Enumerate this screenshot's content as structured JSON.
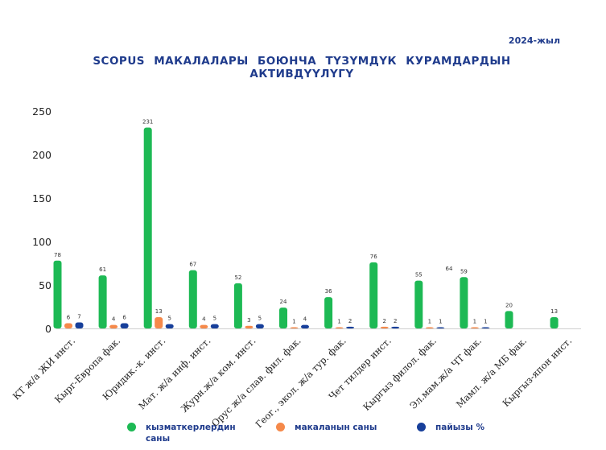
{
  "chart_data": {
    "type": "bar",
    "title": "SCOPUS МАКАЛАЛАРЫ БОЮНЧА ТҮЗҮМДҮК КУРАМДАРДЫН АКТИВДҮҮЛҮГҮ",
    "subtitle": "2024-жыл",
    "categories": [
      "КТ ж/а ЖИ инст.",
      "Кырг-Европа фак.",
      "Юридик.-к. инст.",
      "Мат. ж/а инф. инст.",
      "Журн.ж/а ком. инст.",
      "Орус ж/а слав. фил. фак.",
      "Геог., экол. ж/а тур. фак.",
      "Чет тилдер инст.",
      "Кыргыз филол. фак.",
      "Эл.мам.ж/а ЧТ фак.",
      "Мамл. ж/а МБ фак.",
      "Кыргыз-япон инст."
    ],
    "series": [
      {
        "name": "кызматкерлердин саны",
        "color": "#1db954",
        "values": [
          78,
          61,
          231,
          67,
          52,
          24,
          36,
          76,
          55,
          59,
          20,
          13
        ]
      },
      {
        "name": "макаланын саны",
        "color": "#f5894a",
        "values": [
          6,
          4,
          13,
          4,
          3,
          1,
          1,
          2,
          1,
          1,
          null,
          null
        ]
      },
      {
        "name": "пайызы %",
        "color": "#173f9a",
        "values": [
          7,
          6,
          5,
          5,
          5,
          4,
          2,
          2,
          1,
          1,
          null,
          null
        ]
      }
    ],
    "stray_label": "64",
    "yticks": [
      0,
      50,
      100,
      150,
      200,
      250
    ],
    "ylim": [
      0,
      250
    ],
    "grid": false,
    "legend_position": "bottom"
  }
}
